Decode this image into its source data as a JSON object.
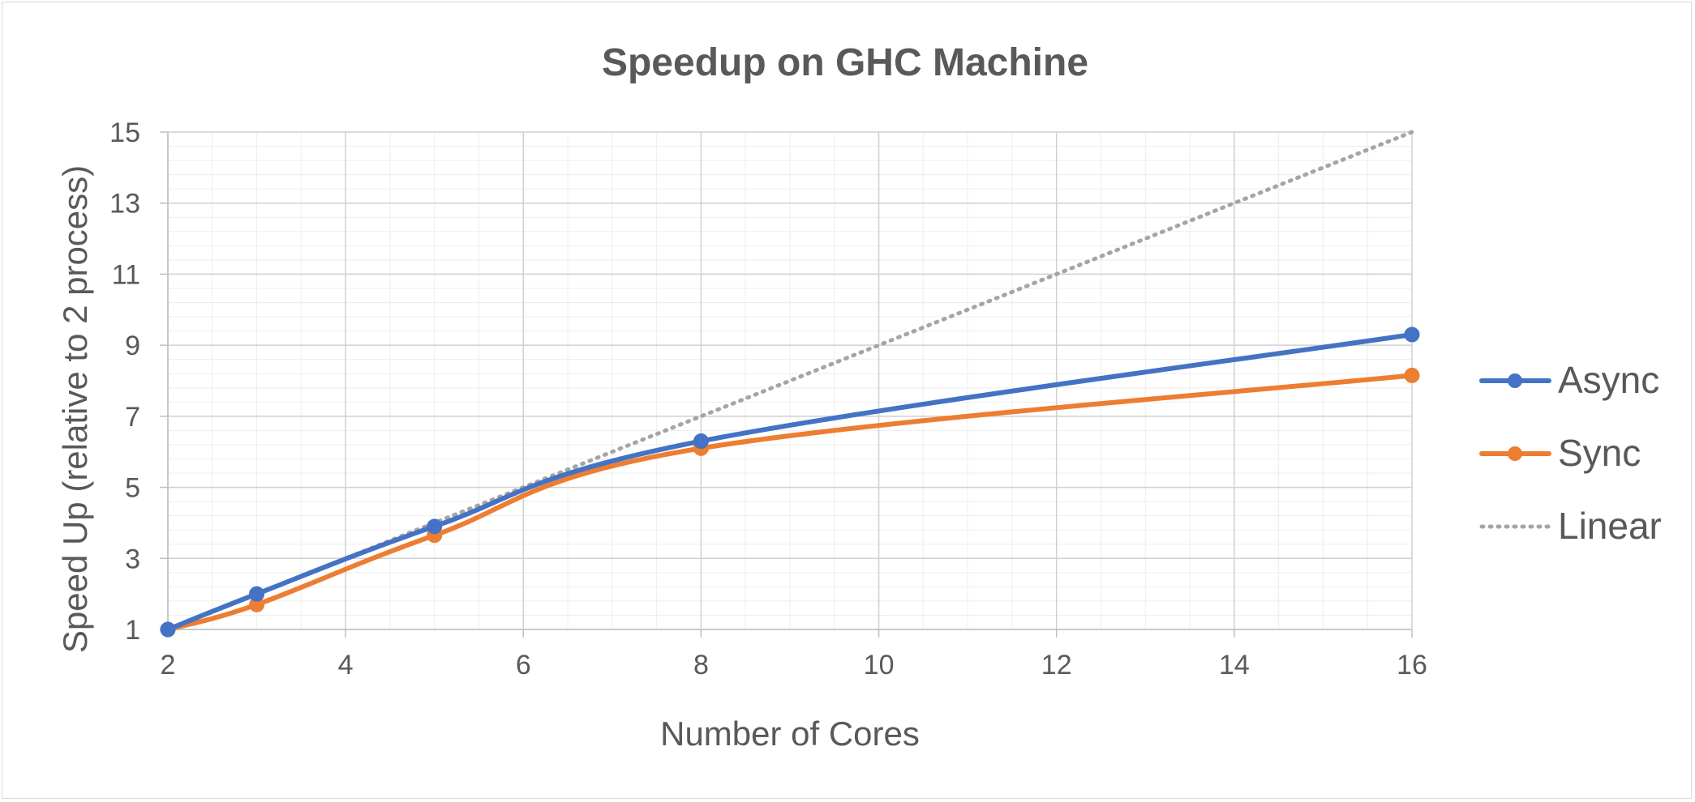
{
  "chart_data": {
    "type": "line",
    "title": "Speedup on GHC Machine",
    "xlabel": "Number of Cores",
    "ylabel": "Speed Up (relative to 2 process)",
    "xlim": [
      2,
      16
    ],
    "ylim": [
      1,
      15
    ],
    "x_ticks": [
      2,
      4,
      6,
      8,
      10,
      12,
      14,
      16
    ],
    "y_ticks": [
      1,
      3,
      5,
      7,
      9,
      11,
      13,
      15
    ],
    "grid": true,
    "legend_position": "right",
    "series": [
      {
        "name": "Async",
        "color": "#4472c4",
        "style": "solid",
        "markers": true,
        "x": [
          2,
          3,
          5,
          8,
          16
        ],
        "y": [
          1,
          2.0,
          3.9,
          6.3,
          9.3
        ]
      },
      {
        "name": "Sync",
        "color": "#ed7d31",
        "style": "solid",
        "markers": true,
        "x": [
          2,
          3,
          5,
          8,
          16
        ],
        "y": [
          1,
          1.7,
          3.65,
          6.1,
          8.15
        ]
      },
      {
        "name": "Linear",
        "color": "#a5a5a5",
        "style": "dotted",
        "markers": false,
        "x": [
          2,
          16
        ],
        "y": [
          1,
          15
        ]
      }
    ]
  }
}
